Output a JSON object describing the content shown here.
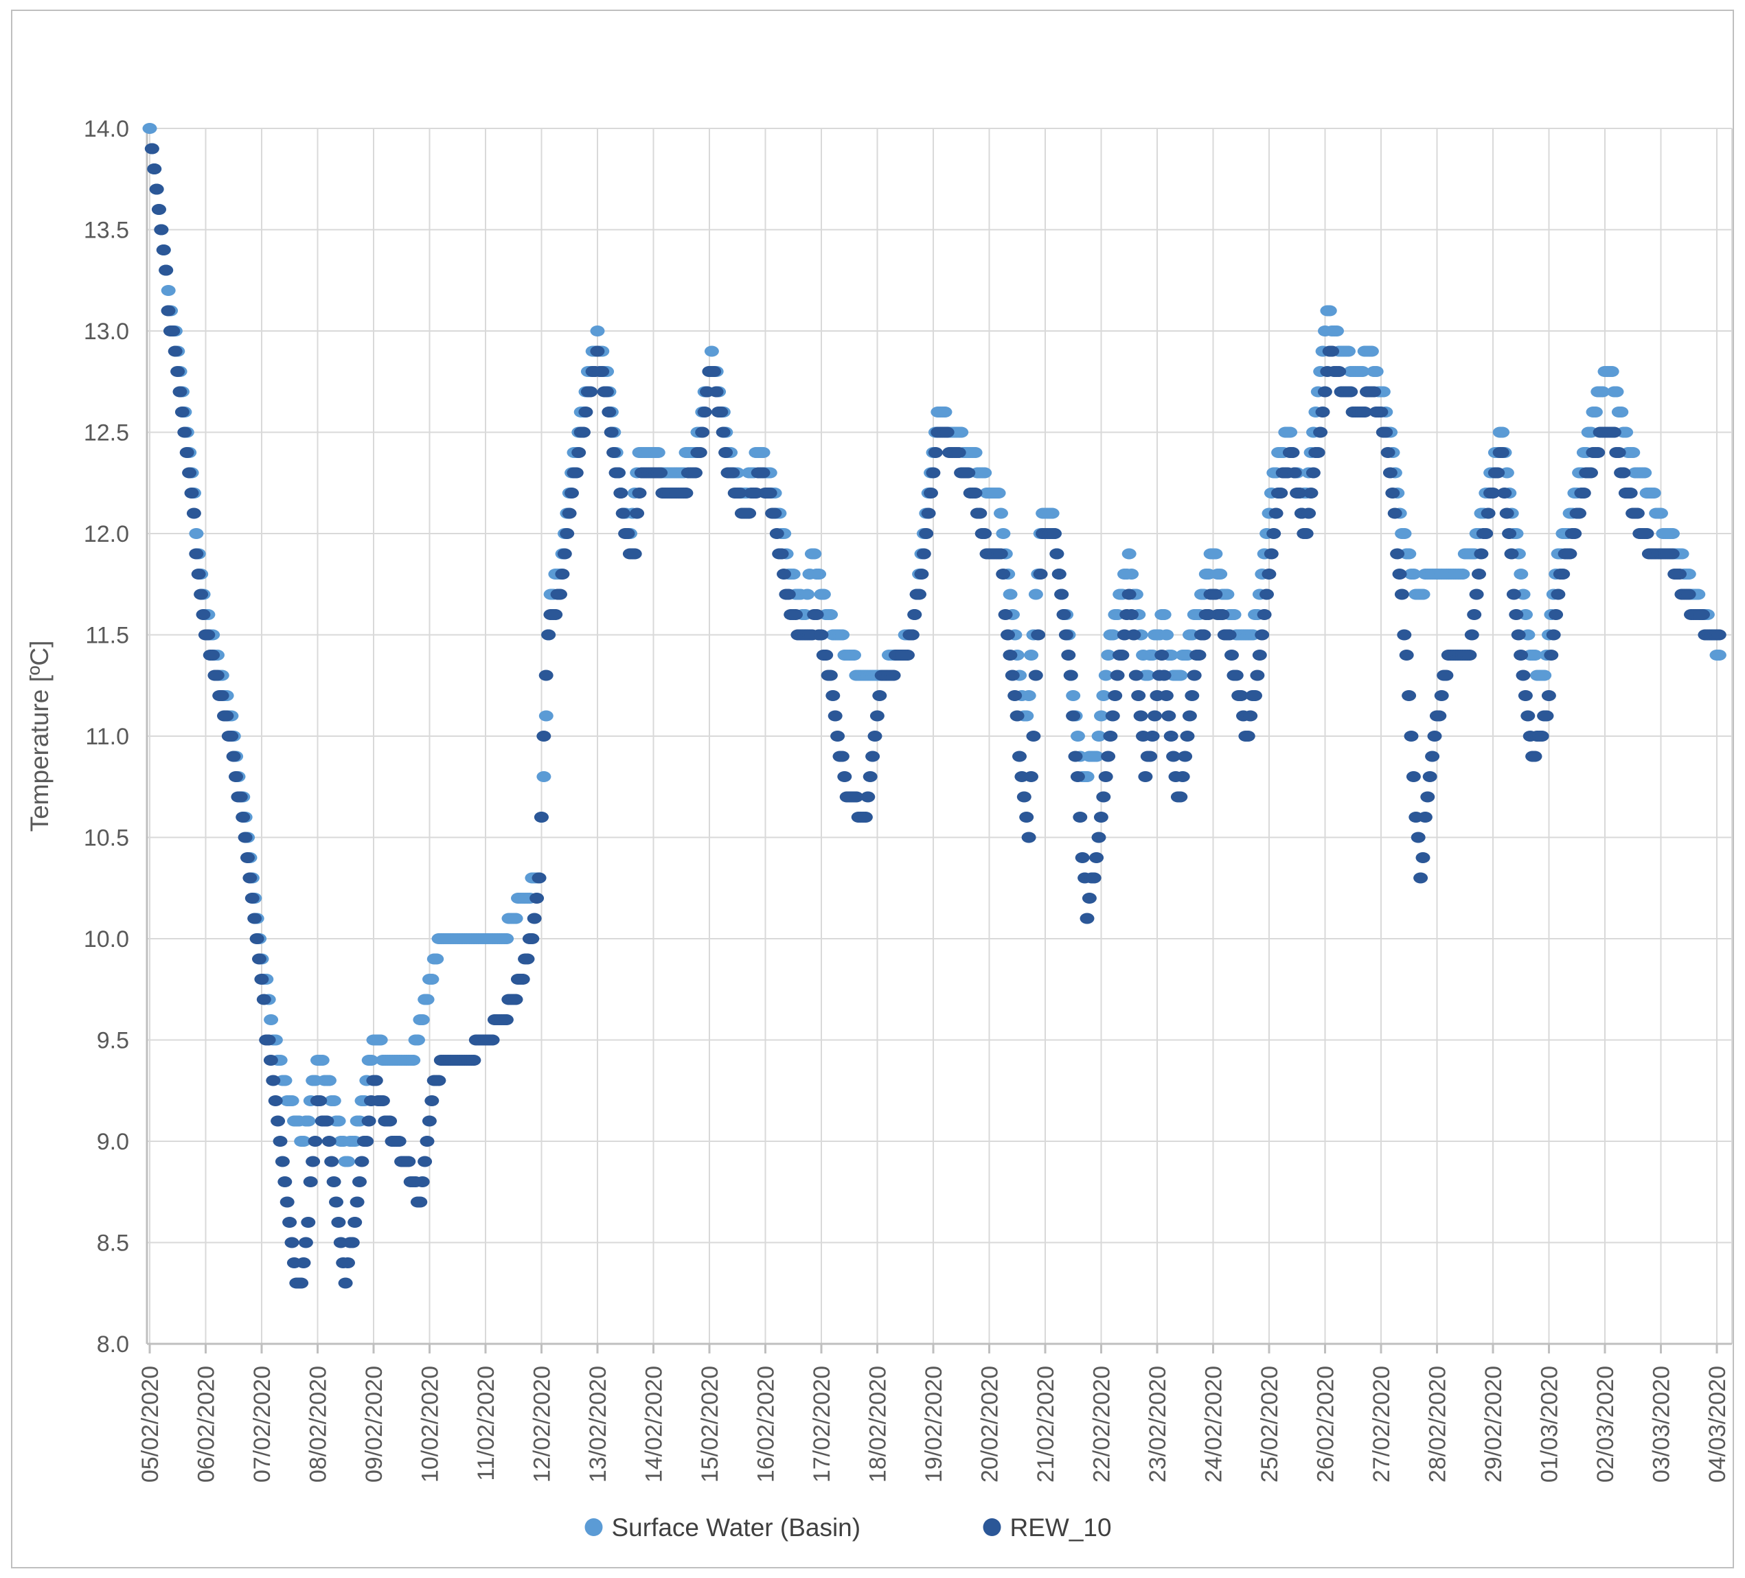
{
  "chart_data": {
    "type": "scatter",
    "title": "",
    "xlabel": "",
    "ylabel": "Temperature [ºC]",
    "ylim": [
      8.0,
      14.0
    ],
    "ytick_step": 0.5,
    "grid": true,
    "legend_position": "bottom",
    "x_tick_labels": [
      "05/02/2020",
      "06/02/2020",
      "07/02/2020",
      "08/02/2020",
      "09/02/2020",
      "10/02/2020",
      "11/02/2020",
      "12/02/2020",
      "13/02/2020",
      "14/02/2020",
      "15/02/2020",
      "16/02/2020",
      "17/02/2020",
      "18/02/2020",
      "19/02/2020",
      "20/02/2020",
      "21/02/2020",
      "22/02/2020",
      "23/02/2020",
      "24/02/2020",
      "25/02/2020",
      "26/02/2020",
      "27/02/2020",
      "28/02/2020",
      "29/02/2020",
      "01/03/2020",
      "02/03/2020",
      "03/03/2020",
      "04/03/2020"
    ],
    "y_tick_labels": [
      "14.0",
      "13.5",
      "13.0",
      "12.5",
      "12.0",
      "11.5",
      "11.0",
      "10.5",
      "10.0",
      "9.5",
      "9.0",
      "8.5",
      "8.0"
    ],
    "sampling_note": "Sub-daily (hourly) readings in °C, quantized to 0.1; t = days since 05/02/2020 00:00; series reconstructed from anchor points read off the plot",
    "hours_per_sample": 1,
    "series": [
      {
        "name": "Surface Water (Basin)",
        "color": "#5B9BD5",
        "anchors": [
          [
            0.0,
            14.0
          ],
          [
            0.35,
            13.2
          ],
          [
            0.7,
            12.4
          ],
          [
            1.0,
            11.6
          ],
          [
            1.45,
            11.1
          ],
          [
            1.8,
            10.4
          ],
          [
            2.15,
            9.6
          ],
          [
            2.5,
            9.2
          ],
          [
            2.75,
            9.0
          ],
          [
            3.0,
            9.4
          ],
          [
            3.2,
            9.3
          ],
          [
            3.5,
            8.9
          ],
          [
            3.75,
            9.1
          ],
          [
            4.0,
            9.5
          ],
          [
            4.3,
            9.4
          ],
          [
            4.65,
            9.35
          ],
          [
            4.95,
            9.7
          ],
          [
            5.2,
            10.0
          ],
          [
            6.3,
            10.0
          ],
          [
            6.65,
            10.2
          ],
          [
            6.95,
            10.3
          ],
          [
            7.05,
            10.8
          ],
          [
            7.15,
            11.7
          ],
          [
            7.35,
            11.85
          ],
          [
            7.6,
            12.4
          ],
          [
            7.85,
            12.8
          ],
          [
            8.0,
            13.0
          ],
          [
            8.15,
            12.8
          ],
          [
            8.45,
            12.1
          ],
          [
            8.6,
            12.0
          ],
          [
            8.75,
            12.4
          ],
          [
            9.1,
            12.35
          ],
          [
            9.4,
            12.3
          ],
          [
            9.75,
            12.4
          ],
          [
            10.05,
            12.9
          ],
          [
            10.35,
            12.4
          ],
          [
            10.6,
            12.2
          ],
          [
            10.9,
            12.4
          ],
          [
            11.15,
            12.2
          ],
          [
            11.45,
            11.8
          ],
          [
            11.7,
            11.6
          ],
          [
            11.85,
            11.9
          ],
          [
            12.1,
            11.6
          ],
          [
            12.4,
            11.45
          ],
          [
            12.7,
            11.3
          ],
          [
            13.2,
            11.35
          ],
          [
            13.6,
            11.5
          ],
          [
            13.85,
            12.0
          ],
          [
            14.1,
            12.6
          ],
          [
            14.35,
            12.5
          ],
          [
            14.65,
            12.4
          ],
          [
            14.95,
            12.25
          ],
          [
            15.15,
            12.2
          ],
          [
            15.4,
            11.6
          ],
          [
            15.65,
            11.0
          ],
          [
            15.95,
            12.1
          ],
          [
            16.15,
            12.05
          ],
          [
            16.4,
            11.5
          ],
          [
            16.65,
            10.8
          ],
          [
            16.9,
            10.9
          ],
          [
            17.15,
            11.45
          ],
          [
            17.5,
            11.9
          ],
          [
            17.8,
            11.3
          ],
          [
            18.1,
            11.6
          ],
          [
            18.35,
            11.25
          ],
          [
            18.6,
            11.5
          ],
          [
            19.0,
            11.9
          ],
          [
            19.3,
            11.6
          ],
          [
            19.55,
            11.45
          ],
          [
            19.8,
            11.6
          ],
          [
            20.1,
            12.3
          ],
          [
            20.35,
            12.5
          ],
          [
            20.6,
            12.1
          ],
          [
            20.8,
            12.5
          ],
          [
            21.05,
            13.1
          ],
          [
            21.3,
            12.9
          ],
          [
            21.55,
            12.8
          ],
          [
            21.8,
            12.9
          ],
          [
            22.1,
            12.6
          ],
          [
            22.4,
            12.0
          ],
          [
            22.65,
            11.7
          ],
          [
            22.9,
            11.8
          ],
          [
            23.3,
            11.8
          ],
          [
            23.65,
            11.9
          ],
          [
            23.9,
            12.2
          ],
          [
            24.15,
            12.5
          ],
          [
            24.4,
            12.0
          ],
          [
            24.65,
            11.4
          ],
          [
            24.9,
            11.3
          ],
          [
            25.15,
            11.9
          ],
          [
            25.4,
            12.1
          ],
          [
            25.65,
            12.4
          ],
          [
            25.9,
            12.7
          ],
          [
            26.1,
            12.8
          ],
          [
            26.35,
            12.5
          ],
          [
            26.6,
            12.3
          ],
          [
            26.85,
            12.2
          ],
          [
            27.1,
            12.0
          ],
          [
            27.35,
            11.9
          ],
          [
            27.6,
            11.7
          ],
          [
            27.85,
            11.55
          ],
          [
            28.05,
            11.4
          ]
        ]
      },
      {
        "name": "REW_10",
        "color": "#2B5797",
        "anchors": [
          [
            0.04,
            13.9
          ],
          [
            0.35,
            13.1
          ],
          [
            0.7,
            12.3
          ],
          [
            1.0,
            11.5
          ],
          [
            1.45,
            11.0
          ],
          [
            1.8,
            10.3
          ],
          [
            2.1,
            9.5
          ],
          [
            2.35,
            9.0
          ],
          [
            2.65,
            8.25
          ],
          [
            2.8,
            8.5
          ],
          [
            3.0,
            9.2
          ],
          [
            3.15,
            9.1
          ],
          [
            3.5,
            8.3
          ],
          [
            3.7,
            8.7
          ],
          [
            4.0,
            9.3
          ],
          [
            4.25,
            9.1
          ],
          [
            4.55,
            8.9
          ],
          [
            4.85,
            8.7
          ],
          [
            5.1,
            9.3
          ],
          [
            5.3,
            9.4
          ],
          [
            5.8,
            9.45
          ],
          [
            6.3,
            9.6
          ],
          [
            6.65,
            9.8
          ],
          [
            6.95,
            10.2
          ],
          [
            7.1,
            11.5
          ],
          [
            7.35,
            11.7
          ],
          [
            7.6,
            12.3
          ],
          [
            7.85,
            12.7
          ],
          [
            8.0,
            12.9
          ],
          [
            8.2,
            12.6
          ],
          [
            8.5,
            12.0
          ],
          [
            8.65,
            11.9
          ],
          [
            8.8,
            12.3
          ],
          [
            9.15,
            12.25
          ],
          [
            9.45,
            12.2
          ],
          [
            9.75,
            12.3
          ],
          [
            10.05,
            12.85
          ],
          [
            10.35,
            12.3
          ],
          [
            10.65,
            12.1
          ],
          [
            10.9,
            12.3
          ],
          [
            11.15,
            12.1
          ],
          [
            11.45,
            11.6
          ],
          [
            11.75,
            11.45
          ],
          [
            11.9,
            11.6
          ],
          [
            12.15,
            11.3
          ],
          [
            12.45,
            10.7
          ],
          [
            12.8,
            10.6
          ],
          [
            13.1,
            11.3
          ],
          [
            13.55,
            11.4
          ],
          [
            13.85,
            11.9
          ],
          [
            14.1,
            12.5
          ],
          [
            14.4,
            12.4
          ],
          [
            14.7,
            12.2
          ],
          [
            14.95,
            11.95
          ],
          [
            15.2,
            11.9
          ],
          [
            15.45,
            11.2
          ],
          [
            15.7,
            10.5
          ],
          [
            15.95,
            12.0
          ],
          [
            16.2,
            11.95
          ],
          [
            16.45,
            11.3
          ],
          [
            16.75,
            10.1
          ],
          [
            17.0,
            10.6
          ],
          [
            17.2,
            11.1
          ],
          [
            17.5,
            11.7
          ],
          [
            17.8,
            10.8
          ],
          [
            18.1,
            11.4
          ],
          [
            18.4,
            10.65
          ],
          [
            18.65,
            11.3
          ],
          [
            19.0,
            11.7
          ],
          [
            19.3,
            11.45
          ],
          [
            19.6,
            11.0
          ],
          [
            19.85,
            11.4
          ],
          [
            20.15,
            12.2
          ],
          [
            20.4,
            12.4
          ],
          [
            20.65,
            12.0
          ],
          [
            20.85,
            12.4
          ],
          [
            21.1,
            12.9
          ],
          [
            21.35,
            12.7
          ],
          [
            21.6,
            12.6
          ],
          [
            21.85,
            12.7
          ],
          [
            22.15,
            12.4
          ],
          [
            22.45,
            11.4
          ],
          [
            22.7,
            10.3
          ],
          [
            22.95,
            11.0
          ],
          [
            23.2,
            11.4
          ],
          [
            23.6,
            11.45
          ],
          [
            23.9,
            12.1
          ],
          [
            24.15,
            12.4
          ],
          [
            24.45,
            11.5
          ],
          [
            24.7,
            10.9
          ],
          [
            24.95,
            11.1
          ],
          [
            25.2,
            11.8
          ],
          [
            25.45,
            12.0
          ],
          [
            25.7,
            12.3
          ],
          [
            25.95,
            12.5
          ],
          [
            26.15,
            12.5
          ],
          [
            26.4,
            12.2
          ],
          [
            26.65,
            12.0
          ],
          [
            26.9,
            11.9
          ],
          [
            27.15,
            11.9
          ],
          [
            27.4,
            11.7
          ],
          [
            27.65,
            11.6
          ],
          [
            27.9,
            11.5
          ],
          [
            28.05,
            11.5
          ]
        ]
      }
    ],
    "style": {
      "grid_color": "#d9d9d9",
      "axis_color": "#bfbfbf",
      "tick_label_color": "#595959",
      "dot_rx": 10.5,
      "dot_ry": 8
    }
  },
  "legend": {
    "items": [
      {
        "label": "Surface Water (Basin)",
        "color": "#5B9BD5"
      },
      {
        "label": "REW_10",
        "color": "#2B5797"
      }
    ]
  },
  "axis": {
    "y_title": "Temperature [ºC]"
  }
}
